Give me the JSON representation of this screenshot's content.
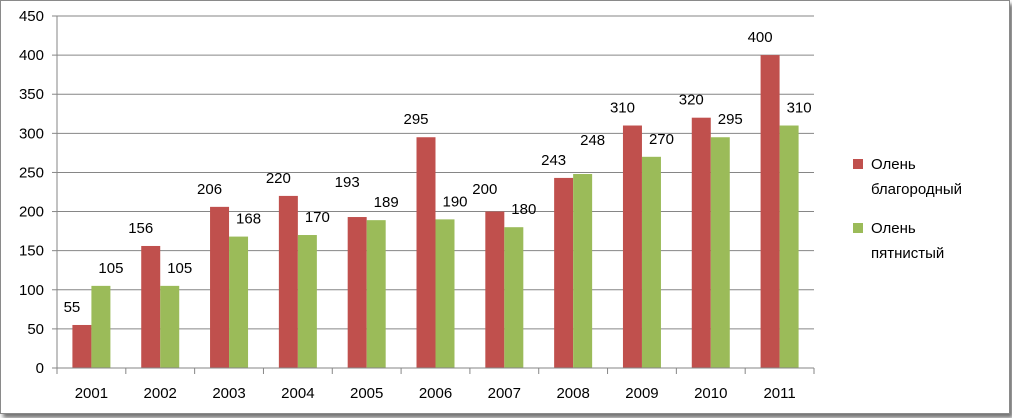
{
  "chart_data": {
    "type": "bar",
    "categories": [
      "2001",
      "2002",
      "2003",
      "2004",
      "2005",
      "2006",
      "2007",
      "2008",
      "2009",
      "2010",
      "2011"
    ],
    "series": [
      {
        "name": "Олень благородный",
        "legend_lines": [
          "Олень",
          "благородный"
        ],
        "color": "#c0504d",
        "values": [
          55,
          156,
          206,
          220,
          193,
          295,
          200,
          243,
          310,
          320,
          400
        ]
      },
      {
        "name": "Олень пятнистый",
        "legend_lines": [
          "Олень",
          "пятнистый"
        ],
        "color": "#9bbb59",
        "values": [
          105,
          105,
          168,
          170,
          189,
          190,
          180,
          248,
          270,
          295,
          310
        ]
      }
    ],
    "ylim": [
      0,
      450
    ],
    "yticks": [
      0,
      50,
      100,
      150,
      200,
      250,
      300,
      350,
      400,
      450
    ],
    "grid": true,
    "legend_position": "right",
    "data_labels": true,
    "title": "",
    "xlabel": "",
    "ylabel": ""
  }
}
